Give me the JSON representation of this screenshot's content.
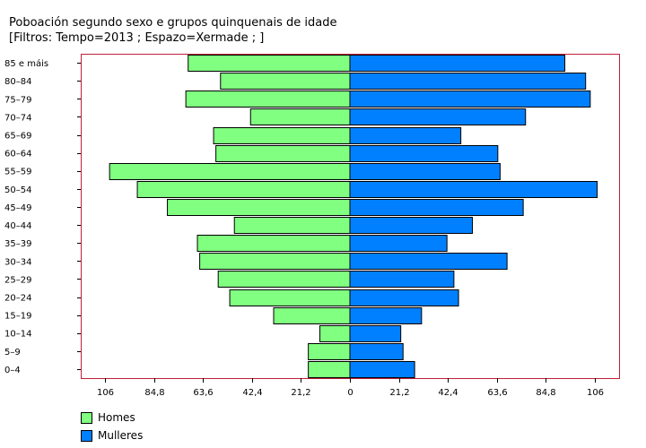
{
  "chart_data": {
    "type": "bar",
    "orientation": "horizontal",
    "layout": "population-pyramid",
    "title": "Poboación segundo sexo e grupos quinquenais de idade",
    "subtitle": "[Filtros: Tempo=2013 ; Espazo=Xermade ; ]",
    "categories": [
      "85 e máis",
      "80–84",
      "75–79",
      "70–74",
      "65–69",
      "60–64",
      "55–59",
      "50–54",
      "45–49",
      "40–44",
      "35–39",
      "30–34",
      "25–29",
      "20–24",
      "15–19",
      "10–14",
      "5–9",
      "0–4"
    ],
    "series": [
      {
        "name": "Homes",
        "color": "#80ff80",
        "values": [
          70,
          56,
          71,
          43,
          59,
          58,
          104,
          92,
          79,
          50,
          66,
          65,
          57,
          52,
          33,
          13,
          18,
          18
        ]
      },
      {
        "name": "Mulleres",
        "color": "#0080ff",
        "values": [
          93,
          102,
          104,
          76,
          48,
          64,
          65,
          107,
          75,
          53,
          42,
          68,
          45,
          47,
          31,
          22,
          23,
          28
        ]
      }
    ],
    "xticks": [
      "106",
      "84,8",
      "63,6",
      "42,4",
      "21,2",
      "0",
      "21,2",
      "42,4",
      "63,6",
      "84,8",
      "106"
    ],
    "xlim": [
      -111,
      113
    ],
    "grid": false,
    "legend": "bottom-left",
    "frame_color": "#c0203a"
  }
}
